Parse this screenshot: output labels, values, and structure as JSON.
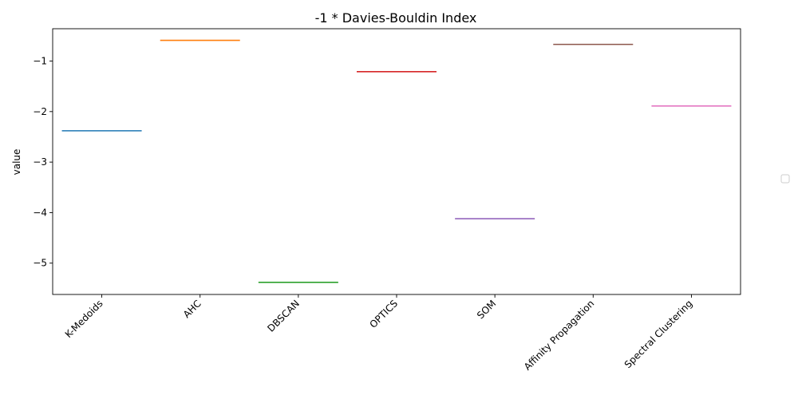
{
  "chart_data": {
    "type": "line",
    "title": "-1 * Davies-Bouldin Index",
    "xlabel": "",
    "ylabel": "value",
    "categories": [
      "K-Medoids",
      "AHC",
      "DBSCAN",
      "OPTICS",
      "SOM",
      "Affinity Propagation",
      "Spectral Clustering"
    ],
    "values": [
      -2.38,
      -0.59,
      -5.38,
      -1.21,
      -4.12,
      -0.67,
      -1.89
    ],
    "colors": [
      "#1f77b4",
      "#ff7f0e",
      "#2ca02c",
      "#d62728",
      "#9467bd",
      "#8c564b",
      "#e377c2"
    ],
    "ylim": [
      -5.62,
      -0.36
    ],
    "yticks": [
      -1,
      -2,
      -3,
      -4,
      -5
    ],
    "ytick_labels": [
      "−1",
      "−2",
      "−3",
      "−4",
      "−5"
    ],
    "grid": false,
    "legend": "right, empty"
  }
}
